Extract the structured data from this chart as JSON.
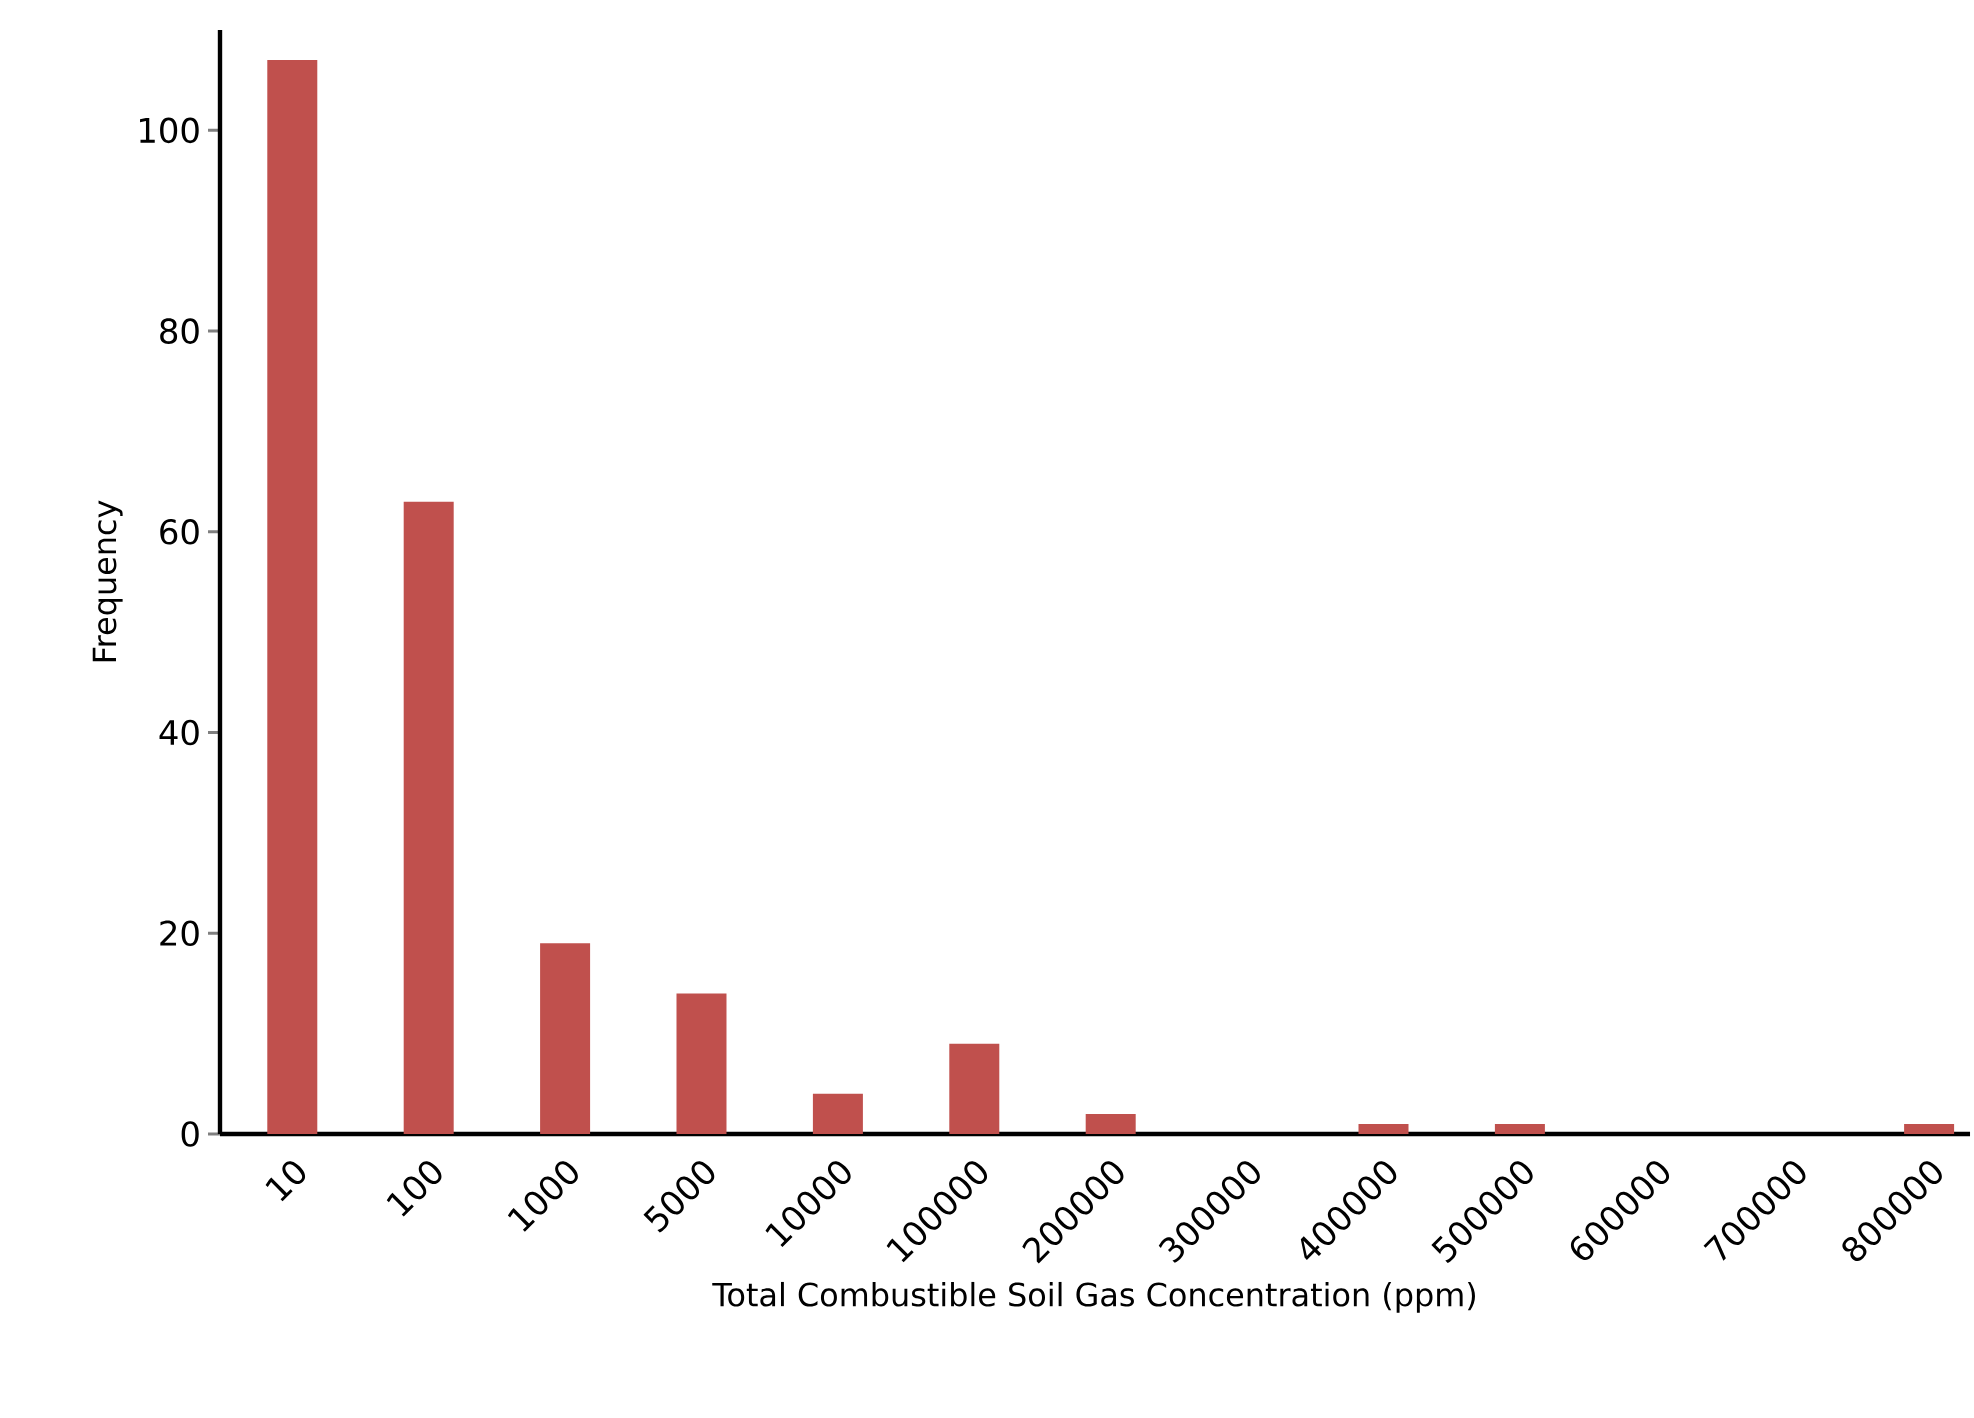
{
  "chart_data": {
    "type": "bar",
    "xlabel": "Total Combustible Soil Gas Concentration (ppm)",
    "ylabel": "Frequency",
    "categories": [
      "10",
      "100",
      "1000",
      "5000",
      "10000",
      "100000",
      "200000",
      "300000",
      "400000",
      "500000",
      "600000",
      "700000",
      "800000"
    ],
    "values": [
      107,
      63,
      19,
      14,
      4,
      9,
      2,
      0,
      1,
      1,
      0,
      0,
      1
    ],
    "color": "#c0504d",
    "ylim": [
      0,
      110
    ],
    "yticks": [
      0,
      20,
      40,
      60,
      80,
      100
    ]
  }
}
